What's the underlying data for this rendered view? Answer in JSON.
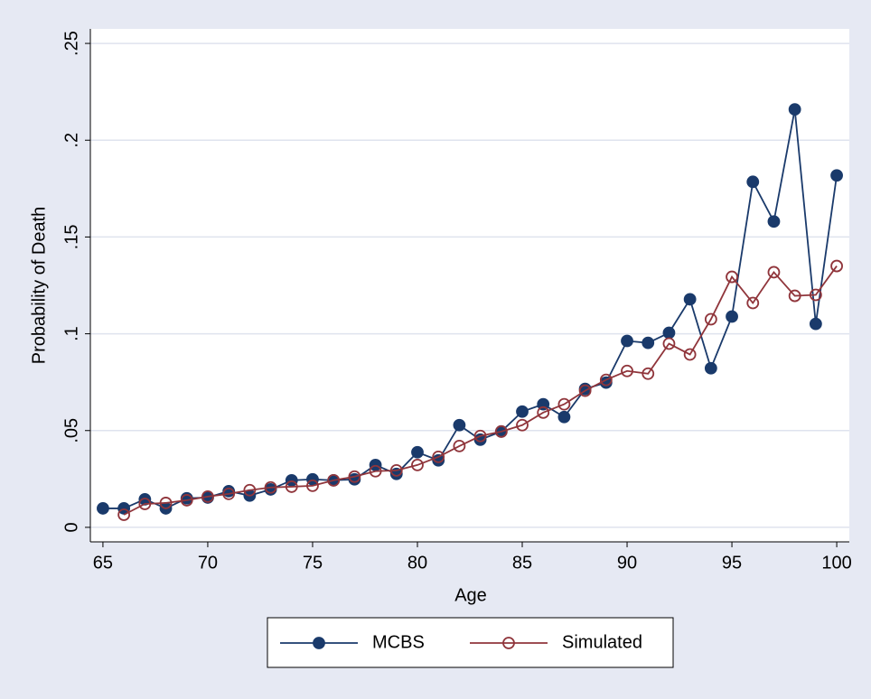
{
  "chart_data": {
    "type": "line",
    "x_label": "Age",
    "y_label": "Probability of Death",
    "x": [
      65,
      66,
      67,
      68,
      69,
      70,
      71,
      72,
      73,
      74,
      75,
      76,
      77,
      78,
      79,
      80,
      81,
      82,
      83,
      84,
      85,
      86,
      87,
      88,
      89,
      90,
      91,
      92,
      93,
      94,
      95,
      96,
      97,
      98,
      99,
      100
    ],
    "series": [
      {
        "name": "MCBS",
        "color": "#1a3a6b",
        "marker": "filled",
        "values": [
          0.0098,
          0.0098,
          0.0145,
          0.0098,
          0.015,
          0.0154,
          0.0187,
          0.0164,
          0.0196,
          0.0243,
          0.0248,
          0.0243,
          0.0248,
          0.0322,
          0.0276,
          0.0388,
          0.0346,
          0.0528,
          0.0453,
          0.0495,
          0.0598,
          0.0636,
          0.057,
          0.0715,
          0.0748,
          0.0963,
          0.0953,
          0.1005,
          0.1178,
          0.0822,
          0.1089,
          0.1785,
          0.158,
          0.2159,
          0.1051,
          0.1818
        ]
      },
      {
        "name": "Simulated",
        "color": "#90353b",
        "marker": "hollow",
        "values": [
          null,
          0.0065,
          0.0121,
          0.0126,
          0.014,
          0.0159,
          0.0173,
          0.0192,
          0.0206,
          0.021,
          0.0215,
          0.0243,
          0.0262,
          0.029,
          0.0294,
          0.0322,
          0.0364,
          0.042,
          0.0472,
          0.0495,
          0.0528,
          0.0593,
          0.0636,
          0.0706,
          0.0762,
          0.0808,
          0.0794,
          0.0949,
          0.0893,
          0.1075,
          0.1294,
          0.1159,
          0.1318,
          0.1196,
          0.1201,
          0.135
        ]
      }
    ],
    "xlim": [
      64.4,
      100.6
    ],
    "ylim": [
      -0.0075,
      0.2575
    ],
    "xticks": [
      65,
      70,
      75,
      80,
      85,
      90,
      95,
      100
    ],
    "yticks": [
      0,
      {
        "value": 0.05,
        "label": ".05"
      },
      {
        "value": 0.1,
        "label": ".1"
      },
      {
        "value": 0.15,
        "label": ".15"
      },
      {
        "value": 0.2,
        "label": ".2"
      },
      {
        "value": 0.25,
        "label": ".25"
      }
    ],
    "grid": true,
    "legend": "bottom"
  }
}
